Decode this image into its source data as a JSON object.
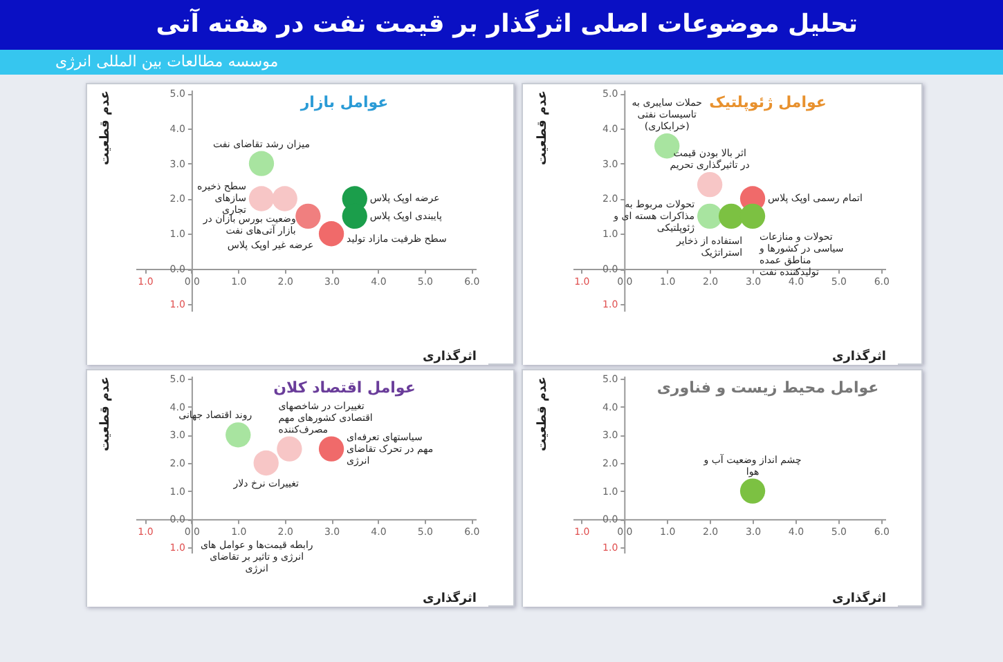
{
  "chart_data": [
    {
      "type": "other",
      "title": "تحلیل موضوعات اصلی اثرگذار بر قیمت نفت در هفته آتی",
      "subtitle": "موسسه مطالعات بین المللی انرژی"
    },
    {
      "type": "scatter",
      "title": "عوامل بازار",
      "xlabel": "اثرگذاری",
      "ylabel": "عدم قطعیت",
      "marker": "circle",
      "x": [
        1.5,
        1.5,
        2.0,
        2.5,
        3.0,
        3.5,
        3.5
      ],
      "values": [
        3.0,
        2.0,
        2.0,
        1.5,
        1.0,
        2.0,
        1.5
      ],
      "colors": [
        "#a8e4a0",
        "#f7c6c6",
        "#f7c6c6",
        "#f07f7f",
        "#f06a6a",
        "#1b9e4b",
        "#1b9e4b"
      ],
      "xlim": [
        -1.2,
        6.1
      ],
      "ylim": [
        -1.2,
        5.1
      ],
      "xticks": [
        {
          "value": -1,
          "label": "1.0"
        },
        {
          "value": 0,
          "label": "0.0"
        },
        {
          "value": 1,
          "label": "1.0"
        },
        {
          "value": 2,
          "label": "2.0"
        },
        {
          "value": 3,
          "label": "3.0"
        },
        {
          "value": 4,
          "label": "4.0"
        },
        {
          "value": 5,
          "label": "5.0"
        },
        {
          "value": 6,
          "label": "6.0"
        }
      ],
      "yticks": [
        {
          "value": -1,
          "label": "1.0"
        },
        {
          "value": 0,
          "label": "0.0"
        },
        {
          "value": 1,
          "label": "1.0"
        },
        {
          "value": 2,
          "label": "2.0"
        },
        {
          "value": 3,
          "label": "3.0"
        },
        {
          "value": 4,
          "label": "4.0"
        },
        {
          "value": 5,
          "label": "5.0"
        }
      ],
      "annotations": [
        {
          "text": "میزان رشد تقاضای نفت",
          "x": 1.5,
          "y": 3.0
        },
        {
          "text": "سطح ذخیره سازهای تجاری",
          "x": 1.5,
          "y": 2.0
        },
        {
          "text": "وضعیت بورس بازان در بازار آتی‌های نفت",
          "x": 2.0,
          "y": 2.0
        },
        {
          "text": "عرضه غیر اوپک پلاس",
          "x": 2.5,
          "y": 1.5
        },
        {
          "text": "سطح ظرفیت مازاد تولید",
          "x": 3.0,
          "y": 1.0
        },
        {
          "text": "عرضه اوپک پلاس",
          "x": 3.5,
          "y": 2.0
        },
        {
          "text": "پایبندی اوپک پلاس",
          "x": 3.5,
          "y": 1.5
        }
      ]
    },
    {
      "type": "scatter",
      "title": "عوامل ژئوپلتیک",
      "xlabel": "اثرگذاری",
      "ylabel": "عدم قطعیت",
      "marker": "circle",
      "x": [
        1.0,
        2.0,
        3.0,
        2.0,
        2.5,
        3.0
      ],
      "values": [
        3.5,
        2.4,
        2.0,
        1.5,
        1.5,
        1.5
      ],
      "colors": [
        "#a8e4a0",
        "#f7c6c6",
        "#f06a6a",
        "#a8e4a0",
        "#7cc142",
        "#7cc142"
      ],
      "xlim": [
        -1.2,
        6.1
      ],
      "ylim": [
        -1.2,
        5.1
      ],
      "xticks": [
        {
          "value": -1,
          "label": "1.0"
        },
        {
          "value": 0,
          "label": "0.0"
        },
        {
          "value": 1,
          "label": "1.0"
        },
        {
          "value": 2,
          "label": "2.0"
        },
        {
          "value": 3,
          "label": "3.0"
        },
        {
          "value": 4,
          "label": "4.0"
        },
        {
          "value": 5,
          "label": "5.0"
        },
        {
          "value": 6,
          "label": "6.0"
        }
      ],
      "yticks": [
        {
          "value": -1,
          "label": "1.0"
        },
        {
          "value": 0,
          "label": "0.0"
        },
        {
          "value": 1,
          "label": "1.0"
        },
        {
          "value": 2,
          "label": "2.0"
        },
        {
          "value": 3,
          "label": "3.0"
        },
        {
          "value": 4,
          "label": "4.0"
        },
        {
          "value": 5,
          "label": "5.0"
        }
      ],
      "annotations": [
        {
          "text": "حملات سایبری به تاسیسات نفتی (خرابکاری)",
          "x": 1.0,
          "y": 3.5
        },
        {
          "text": "اثر بالا بودن قیمت در تاثیرگذاری تحریم",
          "x": 2.0,
          "y": 2.4
        },
        {
          "text": "اتمام رسمی اوپک پلاس",
          "x": 3.0,
          "y": 2.0
        },
        {
          "text": "تحولات مربوط به مذاکرات هسته ای و ژئوپلتیکی",
          "x": 2.0,
          "y": 1.5
        },
        {
          "text": "استفاده از ذخایر استراتژیک",
          "x": 2.5,
          "y": 1.5
        },
        {
          "text": "تحولات و منازعات سیاسی در کشورها و مناطق عمده تولیدکننده نفت",
          "x": 3.0,
          "y": 1.5
        }
      ]
    },
    {
      "type": "scatter",
      "title": "عوامل اقتصاد کلان",
      "xlabel": "اثرگذاری",
      "ylabel": "عدم قطعیت",
      "marker": "circle",
      "x": [
        1.0,
        2.1,
        1.6,
        3.0
      ],
      "values": [
        3.0,
        2.5,
        2.0,
        2.5
      ],
      "colors": [
        "#a8e4a0",
        "#f7c6c6",
        "#f7c6c6",
        "#f06a6a"
      ],
      "xlim": [
        -1.2,
        6.1
      ],
      "ylim": [
        -1.2,
        5.1
      ],
      "xticks": [
        {
          "value": -1,
          "label": "1.0"
        },
        {
          "value": 0,
          "label": "0.0"
        },
        {
          "value": 1,
          "label": "1.0"
        },
        {
          "value": 2,
          "label": "2.0"
        },
        {
          "value": 3,
          "label": "3.0"
        },
        {
          "value": 4,
          "label": "4.0"
        },
        {
          "value": 5,
          "label": "5.0"
        },
        {
          "value": 6,
          "label": "6.0"
        }
      ],
      "yticks": [
        {
          "value": -1,
          "label": "1.0"
        },
        {
          "value": 0,
          "label": "0.0"
        },
        {
          "value": 1,
          "label": "1.0"
        },
        {
          "value": 2,
          "label": "2.0"
        },
        {
          "value": 3,
          "label": "3.0"
        },
        {
          "value": 4,
          "label": "4.0"
        },
        {
          "value": 5,
          "label": "5.0"
        }
      ],
      "annotations": [
        {
          "text": "روند اقتصاد جهانی",
          "x": 1.0,
          "y": 3.0
        },
        {
          "text": "تغییرات در شاخصهای اقتصادی کشورهای مهم مصرف‌کننده",
          "x": 2.1,
          "y": 2.5
        },
        {
          "text": "تغییرات نرخ دلار",
          "x": 1.6,
          "y": 2.0
        },
        {
          "text": "سیاستهای تعرفه‌ای مهم در تحرک تقاضای انرژی",
          "x": 3.0,
          "y": 2.5
        },
        "رابطه قیمت‌ها و عوامل های انرژی و تاثیر بر تقاضای انرژی"
      ]
    },
    {
      "type": "scatter",
      "title": "عوامل محیط زیست و فناوری",
      "xlabel": "اثرگذاری",
      "ylabel": "عدم قطعیت",
      "marker": "circle",
      "x": [
        3.0
      ],
      "values": [
        1.0
      ],
      "colors": [
        "#7cc142"
      ],
      "xlim": [
        -1.2,
        6.1
      ],
      "ylim": [
        -1.2,
        5.1
      ],
      "xticks": [
        {
          "value": -1,
          "label": "1.0"
        },
        {
          "value": 0,
          "label": "0.0"
        },
        {
          "value": 1,
          "label": "1.0"
        },
        {
          "value": 2,
          "label": "2.0"
        },
        {
          "value": 3,
          "label": "3.0"
        },
        {
          "value": 4,
          "label": "4.0"
        },
        {
          "value": 5,
          "label": "5.0"
        },
        {
          "value": 6,
          "label": "6.0"
        }
      ],
      "yticks": [
        {
          "value": -1,
          "label": "1.0"
        },
        {
          "value": 0,
          "label": "0.0"
        },
        {
          "value": 1,
          "label": "1.0"
        },
        {
          "value": 2,
          "label": "2.0"
        },
        {
          "value": 3,
          "label": "3.0"
        },
        {
          "value": 4,
          "label": "4.0"
        },
        {
          "value": 5,
          "label": "5.0"
        }
      ],
      "annotations": [
        {
          "text": "چشم انداز وضعیت آب و هوا",
          "x": 3.0,
          "y": 1.0
        }
      ]
    }
  ]
}
